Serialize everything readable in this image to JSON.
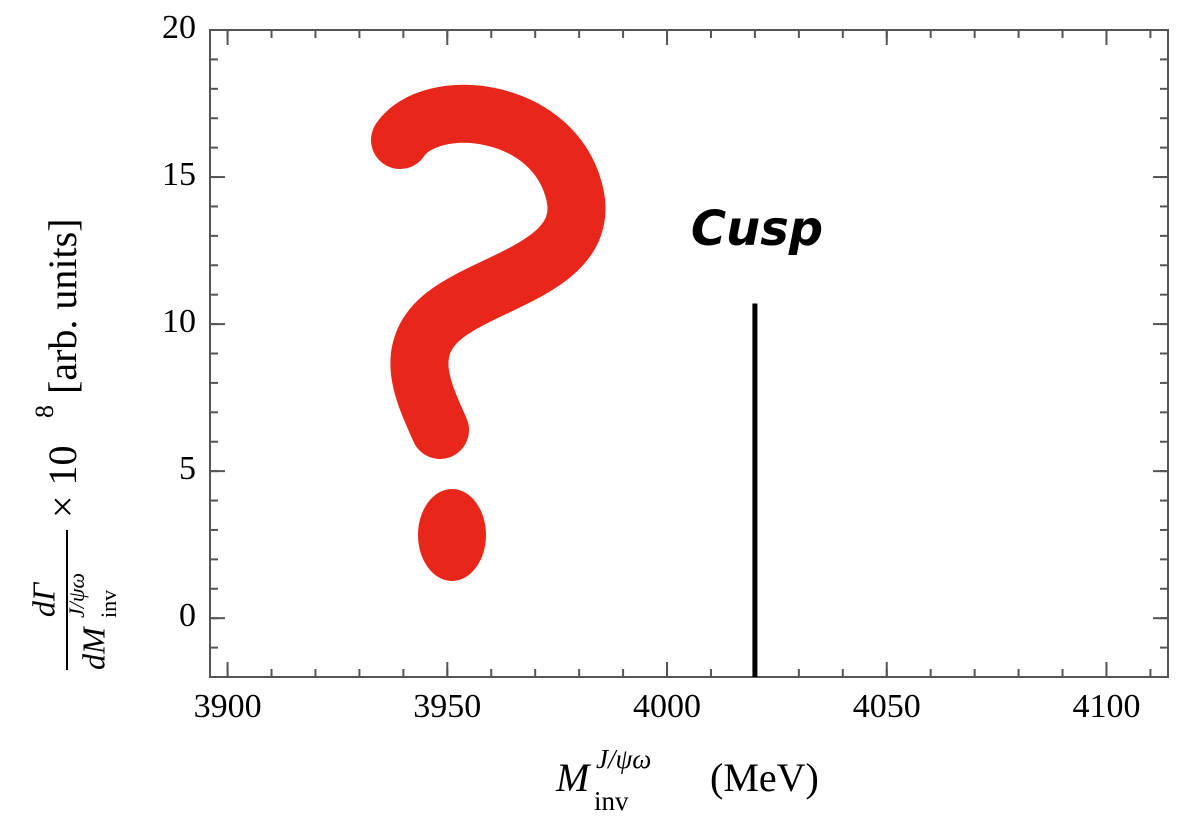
{
  "chart_data": {
    "type": "annotated-frame",
    "xlabel": {
      "symbol": "M",
      "sub": "inv",
      "sup": "J/ψω",
      "units": "(MeV)"
    },
    "ylabel": {
      "numerator": "dΓ",
      "denominator": "dM",
      "denominator_sub": "inv",
      "denominator_sup": "J/ψω",
      "factor": "× 10",
      "factor_sup": "8",
      "units": "[arb. units]"
    },
    "xlim": [
      3896,
      4114
    ],
    "ylim": [
      -2,
      20
    ],
    "xticks": [
      3900,
      3950,
      4000,
      4050,
      4100
    ],
    "yticks": [
      0,
      5,
      10,
      15,
      20
    ],
    "xminor": 10,
    "yminor": 1,
    "annotation": {
      "label": "Cusp",
      "x": 4020,
      "y_top": 10.7,
      "color": "#000000"
    },
    "question_color": "#e8261a"
  }
}
